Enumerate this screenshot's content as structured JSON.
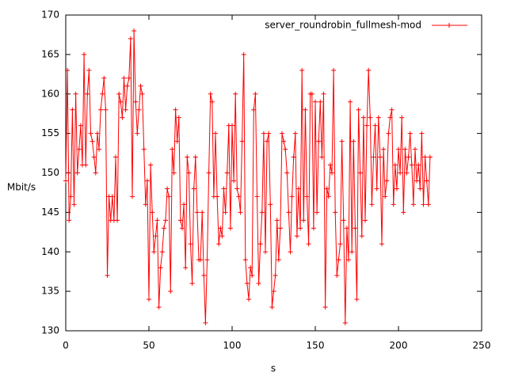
{
  "chart_data": {
    "type": "line",
    "xlabel": "s",
    "ylabel": "Mbit/s",
    "xlim": [
      0,
      250
    ],
    "xticks": [
      0,
      50,
      100,
      150,
      200,
      250
    ],
    "ylim": [
      130,
      170
    ],
    "yticks": [
      130,
      135,
      140,
      145,
      150,
      155,
      160,
      165,
      170
    ],
    "legend": "top-right",
    "x": [
      0,
      1,
      2,
      3,
      4,
      5,
      6,
      7,
      8,
      9,
      10,
      11,
      12,
      13,
      14,
      15,
      16,
      17,
      18,
      19,
      20,
      21,
      22,
      23,
      24,
      25,
      26,
      27,
      28,
      29,
      30,
      31,
      32,
      33,
      34,
      35,
      36,
      37,
      38,
      39,
      40,
      41,
      42,
      43,
      44,
      45,
      46,
      47,
      48,
      49,
      50,
      51,
      52,
      53,
      54,
      55,
      56,
      57,
      58,
      59,
      60,
      61,
      62,
      63,
      64,
      65,
      66,
      67,
      68,
      69,
      70,
      71,
      72,
      73,
      74,
      75,
      76,
      77,
      78,
      79,
      80,
      81,
      82,
      83,
      84,
      85,
      86,
      87,
      88,
      89,
      90,
      91,
      92,
      93,
      94,
      95,
      96,
      97,
      98,
      99,
      100,
      101,
      102,
      103,
      104,
      105,
      106,
      107,
      108,
      109,
      110,
      111,
      112,
      113,
      114,
      115,
      116,
      117,
      118,
      119,
      120,
      121,
      122,
      123,
      124,
      125,
      126,
      127,
      128,
      129,
      130,
      131,
      132,
      133,
      134,
      135,
      136,
      137,
      138,
      139,
      140,
      141,
      142,
      143,
      144,
      145,
      146,
      147,
      148,
      149,
      150,
      151,
      152,
      153,
      154,
      155,
      156,
      157,
      158,
      159,
      160,
      161,
      162,
      163,
      164,
      165,
      166,
      167,
      168,
      169,
      170,
      171,
      172,
      173,
      174,
      175,
      176,
      177,
      178,
      179,
      180,
      181,
      182,
      183,
      184,
      185,
      186,
      187,
      188,
      189,
      190,
      191,
      192,
      193,
      194,
      195,
      196,
      197,
      198,
      199,
      200,
      201,
      202,
      203,
      204,
      205,
      206,
      207,
      208,
      209,
      210,
      211,
      212,
      213,
      214,
      215,
      216,
      217,
      218,
      219
    ],
    "series": [
      {
        "name": "server_roundrobin_fullmesh-mod",
        "color": "#ff0000",
        "values": [
          149,
          163,
          144,
          147,
          158,
          146,
          160,
          150,
          153,
          156,
          151,
          165,
          151,
          160,
          163,
          155,
          154,
          152,
          150,
          155,
          153,
          158,
          160,
          162,
          158,
          137,
          147,
          144,
          147,
          144,
          152,
          144,
          160,
          159,
          157,
          162,
          158,
          161,
          162,
          167,
          147,
          168,
          159,
          155,
          158,
          161,
          160,
          153,
          146,
          149,
          134,
          151,
          145,
          140,
          142,
          144,
          133,
          138,
          140,
          143,
          144,
          148,
          147,
          135,
          153,
          150,
          158,
          154,
          157,
          144,
          143,
          146,
          138,
          152,
          150,
          141,
          136,
          148,
          152,
          145,
          139,
          139,
          145,
          137,
          131,
          139,
          150,
          160,
          159,
          147,
          155,
          147,
          141,
          143,
          142,
          148,
          145,
          150,
          156,
          143,
          156,
          149,
          160,
          148,
          147,
          145,
          154,
          165,
          139,
          136,
          134,
          138,
          137,
          158,
          160,
          147,
          136,
          141,
          145,
          155,
          140,
          154,
          155,
          146,
          133,
          135,
          137,
          144,
          139,
          143,
          155,
          154,
          153,
          150,
          145,
          140,
          147,
          152,
          155,
          142,
          148,
          143,
          163,
          144,
          158,
          147,
          141,
          160,
          160,
          143,
          159,
          145,
          154,
          159,
          152,
          160,
          133,
          148,
          147,
          151,
          150,
          163,
          145,
          137,
          139,
          141,
          154,
          144,
          131,
          143,
          139,
          159,
          140,
          154,
          143,
          134,
          158,
          150,
          142,
          157,
          144,
          156,
          163,
          157,
          146,
          152,
          156,
          148,
          157,
          152,
          141,
          153,
          147,
          149,
          155,
          157,
          158,
          146,
          151,
          148,
          153,
          150,
          157,
          145,
          153,
          150,
          152,
          155,
          151,
          146,
          153,
          149,
          151,
          148,
          155,
          146,
          152,
          149,
          146,
          152
        ]
      }
    ]
  }
}
